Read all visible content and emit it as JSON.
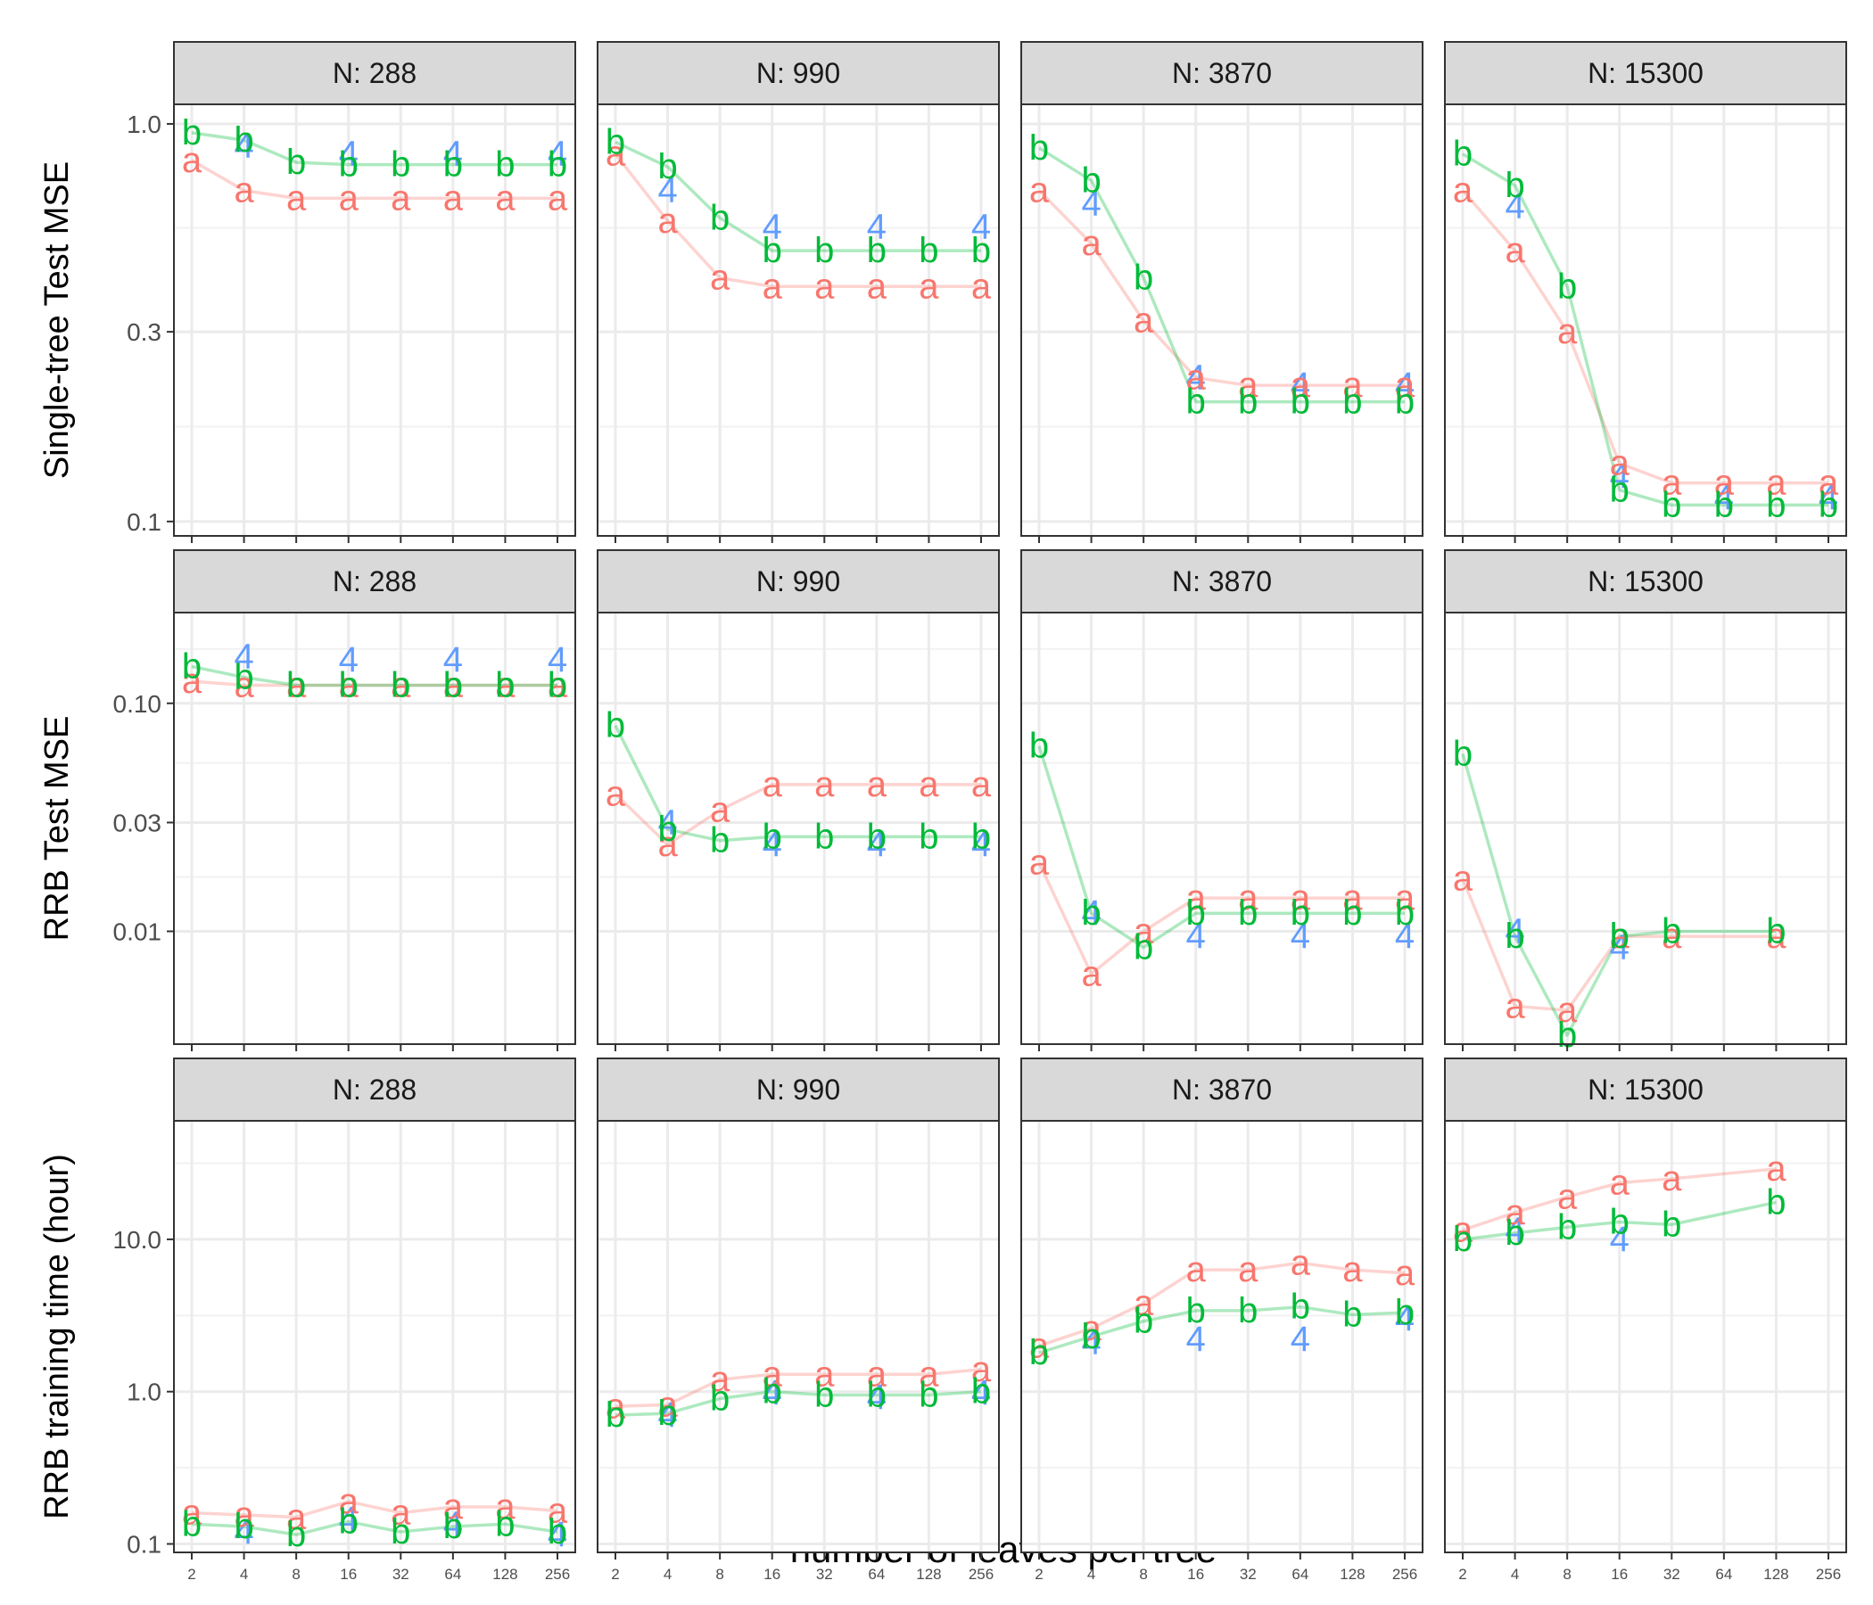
{
  "colors": {
    "a": "#F8766D",
    "b": "#00BA38",
    "4": "#619CFF"
  },
  "chart_data": {
    "type": "line",
    "xlabel": "number of leaves per tree",
    "x_ticks": [
      "2",
      "4",
      "8",
      "16",
      "32",
      "64",
      "128",
      "256"
    ],
    "x_values": [
      2,
      4,
      8,
      16,
      32,
      64,
      128,
      256
    ],
    "panels_N": [
      "N: 288",
      "N: 990",
      "N: 3870",
      "N: 15300"
    ],
    "rows": [
      {
        "ylabel": "Single-tree Test MSE",
        "yscale": "log10",
        "ylim": [
          0.092,
          1.12
        ],
        "yticks": [
          {
            "v": 0.1,
            "label": "0.1"
          },
          {
            "v": 0.3,
            "label": "0.3"
          },
          {
            "v": 1.0,
            "label": "1.0"
          }
        ],
        "panels": [
          {
            "series": [
              {
                "name": "a",
                "values": [
                  0.81,
                  0.68,
                  0.65,
                  0.65,
                  0.65,
                  0.65,
                  0.65,
                  0.65
                ]
              },
              {
                "name": "b",
                "values": [
                  0.95,
                  0.91,
                  0.8,
                  0.79,
                  0.79,
                  0.79,
                  0.79,
                  0.79
                ]
              },
              {
                "name": "4",
                "values": [
                  null,
                  0.88,
                  null,
                  0.84,
                  null,
                  0.84,
                  null,
                  0.84
                ]
              }
            ]
          },
          {
            "series": [
              {
                "name": "a",
                "values": [
                  0.84,
                  0.57,
                  0.41,
                  0.39,
                  0.39,
                  0.39,
                  0.39,
                  0.39
                ]
              },
              {
                "name": "b",
                "values": [
                  0.9,
                  0.78,
                  0.58,
                  0.48,
                  0.48,
                  0.48,
                  0.48,
                  0.48
                ]
              },
              {
                "name": "4",
                "values": [
                  null,
                  0.68,
                  null,
                  0.55,
                  null,
                  0.55,
                  null,
                  0.55
                ]
              }
            ]
          },
          {
            "series": [
              {
                "name": "a",
                "values": [
                  0.68,
                  0.5,
                  0.32,
                  0.23,
                  0.22,
                  0.22,
                  0.22,
                  0.22
                ]
              },
              {
                "name": "b",
                "values": [
                  0.87,
                  0.72,
                  0.41,
                  0.2,
                  0.2,
                  0.2,
                  0.2,
                  0.2
                ]
              },
              {
                "name": "4",
                "values": [
                  null,
                  0.63,
                  null,
                  0.23,
                  null,
                  0.22,
                  null,
                  0.22
                ]
              }
            ]
          },
          {
            "series": [
              {
                "name": "a",
                "values": [
                  0.68,
                  0.48,
                  0.3,
                  0.14,
                  0.125,
                  0.125,
                  0.125,
                  0.125
                ]
              },
              {
                "name": "b",
                "values": [
                  0.84,
                  0.7,
                  0.39,
                  0.12,
                  0.11,
                  0.11,
                  0.11,
                  0.11
                ]
              },
              {
                "name": "4",
                "values": [
                  null,
                  0.62,
                  null,
                  0.13,
                  null,
                  0.115,
                  null,
                  0.115
                ]
              }
            ]
          }
        ]
      },
      {
        "ylabel": "RRB Test MSE",
        "yscale": "log10",
        "ylim": [
          0.0032,
          0.25
        ],
        "yticks": [
          {
            "v": 0.01,
            "label": "0.01"
          },
          {
            "v": 0.03,
            "label": "0.03"
          },
          {
            "v": 0.1,
            "label": "0.10"
          }
        ],
        "panels": [
          {
            "series": [
              {
                "name": "a",
                "values": [
                  0.125,
                  0.12,
                  0.12,
                  0.12,
                  0.12,
                  0.12,
                  0.12,
                  0.12
                ]
              },
              {
                "name": "b",
                "values": [
                  0.145,
                  0.13,
                  0.12,
                  0.12,
                  0.12,
                  0.12,
                  0.12,
                  0.12
                ]
              },
              {
                "name": "4",
                "values": [
                  null,
                  0.16,
                  null,
                  0.155,
                  null,
                  0.155,
                  null,
                  0.155
                ]
              }
            ]
          },
          {
            "series": [
              {
                "name": "a",
                "values": [
                  0.04,
                  0.024,
                  0.034,
                  0.044,
                  0.044,
                  0.044,
                  0.044,
                  0.044
                ]
              },
              {
                "name": "b",
                "values": [
                  0.08,
                  0.028,
                  0.025,
                  0.026,
                  0.026,
                  0.026,
                  0.026,
                  0.026
                ]
              },
              {
                "name": "4",
                "values": [
                  null,
                  0.03,
                  null,
                  0.024,
                  null,
                  0.024,
                  null,
                  0.024
                ]
              }
            ]
          },
          {
            "series": [
              {
                "name": "a",
                "values": [
                  0.02,
                  0.0065,
                  0.01,
                  0.014,
                  0.014,
                  0.014,
                  0.014,
                  0.014
                ]
              },
              {
                "name": "b",
                "values": [
                  0.065,
                  0.012,
                  0.0085,
                  0.012,
                  0.012,
                  0.012,
                  0.012,
                  0.012
                ]
              },
              {
                "name": "4",
                "values": [
                  null,
                  0.012,
                  null,
                  0.0095,
                  null,
                  0.0095,
                  null,
                  0.0095
                ]
              }
            ]
          },
          {
            "series": [
              {
                "name": "a",
                "values": [
                  0.017,
                  0.0047,
                  0.0045,
                  0.0095,
                  0.0095,
                  null,
                  0.0095,
                  null
                ]
              },
              {
                "name": "b",
                "values": [
                  0.06,
                  0.0095,
                  0.0035,
                  0.0095,
                  0.01,
                  null,
                  0.01,
                  null
                ]
              },
              {
                "name": "4",
                "values": [
                  null,
                  0.01,
                  null,
                  0.0085,
                  null,
                  null,
                  null,
                  null
                ]
              }
            ]
          }
        ]
      },
      {
        "ylabel": "RRB training time (hour)",
        "yscale": "log10",
        "ylim": [
          0.088,
          60
        ],
        "yticks": [
          {
            "v": 0.1,
            "label": "0.1"
          },
          {
            "v": 1.0,
            "label": "1.0"
          },
          {
            "v": 10.0,
            "label": "10.0"
          }
        ],
        "panels": [
          {
            "series": [
              {
                "name": "a",
                "values": [
                  0.16,
                  0.155,
                  0.15,
                  0.19,
                  0.16,
                  0.175,
                  0.175,
                  0.165
                ]
              },
              {
                "name": "b",
                "values": [
                  0.135,
                  0.13,
                  0.115,
                  0.14,
                  0.12,
                  0.13,
                  0.135,
                  0.12
                ]
              },
              {
                "name": "4",
                "values": [
                  null,
                  0.12,
                  null,
                  0.145,
                  null,
                  0.135,
                  null,
                  0.115
                ]
              }
            ]
          },
          {
            "series": [
              {
                "name": "a",
                "values": [
                  0.8,
                  0.82,
                  1.2,
                  1.3,
                  1.3,
                  1.3,
                  1.3,
                  1.4
                ]
              },
              {
                "name": "b",
                "values": [
                  0.7,
                  0.72,
                  0.9,
                  1.0,
                  0.95,
                  0.95,
                  0.95,
                  1.0
                ]
              },
              {
                "name": "4",
                "values": [
                  null,
                  0.7,
                  null,
                  0.98,
                  null,
                  0.92,
                  null,
                  0.98
                ]
              }
            ]
          },
          {
            "series": [
              {
                "name": "a",
                "values": [
                  2.0,
                  2.6,
                  3.8,
                  6.3,
                  6.3,
                  7.0,
                  6.3,
                  6.0
                ]
              },
              {
                "name": "b",
                "values": [
                  1.8,
                  2.3,
                  2.9,
                  3.4,
                  3.4,
                  3.6,
                  3.2,
                  3.3
                ]
              },
              {
                "name": "4",
                "values": [
                  null,
                  2.1,
                  null,
                  2.2,
                  null,
                  2.2,
                  null,
                  3.0
                ]
              }
            ]
          },
          {
            "series": [
              {
                "name": "a",
                "values": [
                  11.5,
                  15.0,
                  19.0,
                  23.5,
                  25.0,
                  null,
                  29.0,
                  null
                ]
              },
              {
                "name": "b",
                "values": [
                  10.0,
                  11.0,
                  12.0,
                  13.0,
                  12.5,
                  null,
                  17.5,
                  null
                ]
              },
              {
                "name": "4",
                "values": [
                  null,
                  11.5,
                  null,
                  10.0,
                  null,
                  null,
                  null,
                  null
                ]
              }
            ]
          }
        ]
      }
    ]
  }
}
